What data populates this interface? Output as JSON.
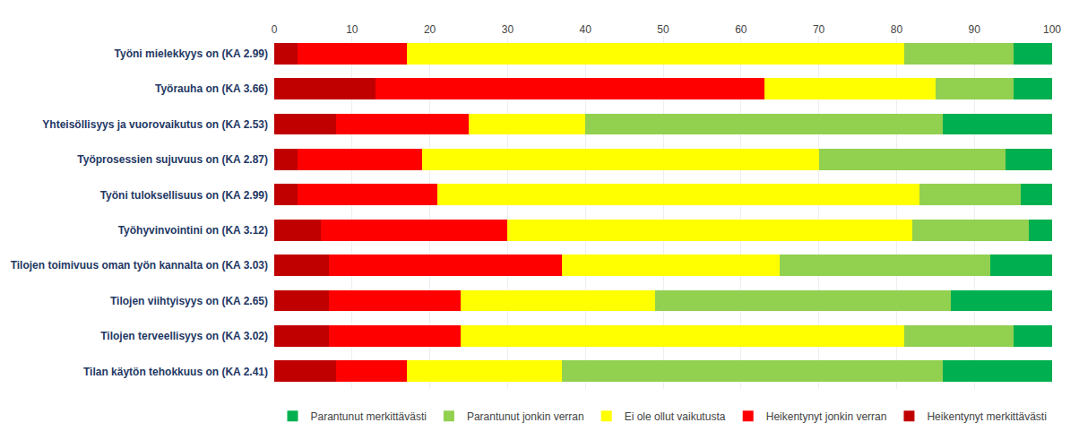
{
  "chart_data": {
    "type": "bar",
    "orientation": "horizontal",
    "stacked": true,
    "categories": [
      "Työni mielekkyys on (KA 2.99)",
      "Työrauha on (KA 3.66)",
      "Yhteisöllisyys ja vuorovaikutus on (KA 2.53)",
      "Työprosessien sujuvuus on (KA 2.87)",
      "Työni tuloksellisuus on (KA 2.99)",
      "Työhyvinvointini on (KA 3.12)",
      "Tilojen toimivuus oman työn kannalta on (KA 3.03)",
      "Tilojen viihtyisyys on (KA 2.65)",
      "Tilojen terveellisyys on (KA 3.02)",
      "Tilan käytön tehokkuus on (KA 2.41)"
    ],
    "series": [
      {
        "name": "Heikentynyt merkittävästi",
        "color": "#C00000",
        "values": [
          3,
          13,
          8,
          3,
          3,
          6,
          7,
          7,
          7,
          8
        ]
      },
      {
        "name": "Heikentynyt jonkin verran",
        "color": "#FF0000",
        "values": [
          14,
          50,
          17,
          16,
          18,
          24,
          30,
          17,
          17,
          9
        ]
      },
      {
        "name": "Ei ole ollut vaikutusta",
        "color": "#FFFF00",
        "values": [
          64,
          22,
          15,
          51,
          62,
          52,
          28,
          25,
          57,
          20
        ]
      },
      {
        "name": "Parantunut jonkin verran",
        "color": "#92D050",
        "values": [
          14,
          10,
          46,
          24,
          13,
          15,
          27,
          38,
          14,
          49
        ]
      },
      {
        "name": "Parantunut merkittävästi",
        "color": "#00B050",
        "values": [
          5,
          5,
          14,
          6,
          4,
          3,
          8,
          13,
          5,
          14
        ]
      }
    ],
    "xlim": [
      0,
      100
    ],
    "xticks": [
      0,
      10,
      20,
      30,
      40,
      50,
      60,
      70,
      80,
      90,
      100
    ],
    "grid": true,
    "legend": "bottom"
  }
}
